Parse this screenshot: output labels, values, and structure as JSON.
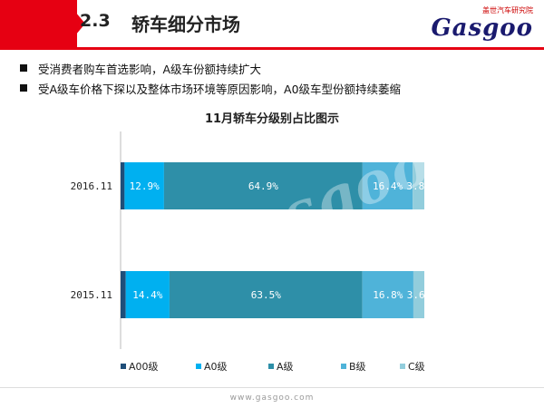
{
  "header": {
    "section_number": "2.3",
    "title": "轿车细分市场",
    "logo_cn": "盖世汽车研究院",
    "logo_en": "Gasgoo"
  },
  "bullets": [
    "受消费者购车首选影响，A级车份额持续扩大",
    "受A级车价格下探以及整体市场环境等原因影响，A0级车型份额持续萎缩"
  ],
  "footer": {
    "url": "www.gasgoo.com"
  },
  "colors": {
    "accent": "#e60012"
  },
  "chart_data": {
    "type": "bar",
    "orientation": "horizontal",
    "stacked": "percent",
    "title": "11月轿车分级别占比图示",
    "categories": [
      "2016.11",
      "2015.11"
    ],
    "series": [
      {
        "name": "A00级",
        "color": "#1f4e79",
        "values": [
          1.3,
          1.7
        ],
        "labels": [
          "",
          ""
        ]
      },
      {
        "name": "A0级",
        "color": "#00b0f0",
        "values": [
          12.9,
          14.4
        ],
        "labels": [
          "12.9%",
          "14.4%"
        ]
      },
      {
        "name": "A级",
        "color": "#2e8fa8",
        "values": [
          64.9,
          63.5
        ],
        "labels": [
          "64.9%",
          "63.5%"
        ]
      },
      {
        "name": "B级",
        "color": "#4fb3d9",
        "values": [
          16.4,
          16.8
        ],
        "labels": [
          "16.4%",
          "16.8%"
        ]
      },
      {
        "name": "C级",
        "color": "#92cddc",
        "values": [
          3.8,
          3.6
        ],
        "labels": [
          "3.8%",
          "3.6%"
        ]
      }
    ],
    "legend": "bottom",
    "grid": false
  }
}
